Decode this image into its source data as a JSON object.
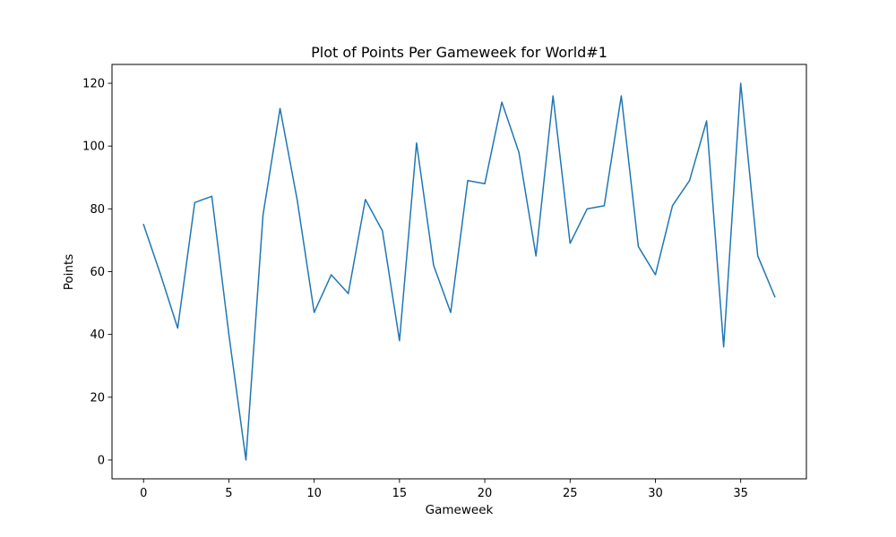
{
  "colors": {
    "line": "#1f77b4",
    "axes": "#000000",
    "background": "#ffffff"
  },
  "chart_data": {
    "type": "line",
    "title": "Plot of Points Per Gameweek for World#1",
    "xlabel": "Gameweek",
    "ylabel": "Points",
    "xlim": [
      -1.85,
      38.85
    ],
    "ylim": [
      -6,
      126
    ],
    "xticks": [
      0,
      5,
      10,
      15,
      20,
      25,
      30,
      35
    ],
    "yticks": [
      0,
      20,
      40,
      60,
      80,
      100,
      120
    ],
    "grid": false,
    "legend": null,
    "series": [
      {
        "x": [
          0,
          1,
          2,
          3,
          4,
          5,
          6,
          7,
          8,
          9,
          10,
          11,
          12,
          13,
          14,
          15,
          16,
          17,
          18,
          19,
          20,
          21,
          22,
          23,
          24,
          25,
          26,
          27,
          28,
          29,
          30,
          31,
          32,
          33,
          34,
          35,
          36,
          37
        ],
        "values": [
          75,
          59,
          42,
          82,
          84,
          40,
          0,
          78,
          112,
          83,
          47,
          59,
          53,
          83,
          73,
          38,
          101,
          62,
          47,
          89,
          88,
          114,
          98,
          65,
          116,
          69,
          80,
          81,
          116,
          68,
          59,
          81,
          89,
          108,
          36,
          120,
          65,
          52
        ]
      }
    ]
  }
}
